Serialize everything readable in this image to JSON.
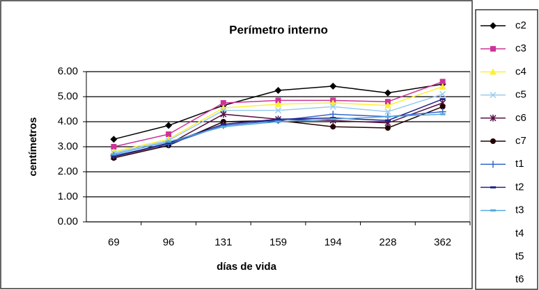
{
  "chart_data": {
    "type": "line",
    "title": "Perímetro interno",
    "x_label": "días de vida",
    "y_label": "centímetros",
    "categories": [
      "69",
      "96",
      "131",
      "159",
      "194",
      "228",
      "362"
    ],
    "ylim": [
      0,
      6
    ],
    "yticks": [
      {
        "value": 0,
        "label": "0.00"
      },
      {
        "value": 1,
        "label": "1.00"
      },
      {
        "value": 2,
        "label": "2.00"
      },
      {
        "value": 3,
        "label": "3.00"
      },
      {
        "value": 4,
        "label": "4.00"
      },
      {
        "value": 5,
        "label": "5.00"
      },
      {
        "value": 6,
        "label": "6.00"
      }
    ],
    "grid": true,
    "legend": "right",
    "series": [
      {
        "name": "c2",
        "color": "#000000",
        "marker": "diamond",
        "values": [
          3.3,
          3.85,
          4.65,
          5.25,
          5.42,
          5.15,
          5.5
        ]
      },
      {
        "name": "c3",
        "color": "#cc3399",
        "marker": "square",
        "values": [
          3.0,
          3.5,
          4.75,
          4.85,
          4.85,
          4.8,
          5.6
        ]
      },
      {
        "name": "c4",
        "color": "#ffee33",
        "marker": "triangle",
        "values": [
          2.8,
          3.3,
          4.55,
          4.7,
          4.75,
          4.65,
          5.4
        ]
      },
      {
        "name": "c5",
        "color": "#99ccee",
        "marker": "x",
        "values": [
          2.75,
          3.25,
          4.45,
          4.45,
          4.6,
          4.4,
          5.1
        ]
      },
      {
        "name": "c6",
        "color": "#551144",
        "marker": "star",
        "values": [
          2.6,
          3.1,
          4.3,
          4.1,
          4.05,
          3.95,
          4.75
        ]
      },
      {
        "name": "c7",
        "color": "#220000",
        "marker": "circle",
        "values": [
          2.55,
          3.05,
          4.0,
          4.05,
          3.8,
          3.75,
          4.6
        ]
      },
      {
        "name": "t1",
        "color": "#3366cc",
        "marker": "plus",
        "values": [
          2.65,
          3.1,
          3.85,
          4.05,
          4.3,
          4.2,
          4.4
        ]
      },
      {
        "name": "t2",
        "color": "#222288",
        "marker": "dash",
        "values": [
          2.6,
          3.15,
          3.9,
          4.1,
          4.15,
          4.05,
          4.9
        ]
      },
      {
        "name": "t3",
        "color": "#55aadd",
        "marker": "dash",
        "values": [
          2.7,
          3.2,
          3.8,
          4.0,
          4.1,
          4.2,
          4.3
        ]
      },
      {
        "name": "t4",
        "color": "#ffffff",
        "marker": "none",
        "values": [
          null,
          null,
          null,
          null,
          null,
          null,
          null
        ]
      },
      {
        "name": "t5",
        "color": "#ffffff",
        "marker": "none",
        "values": [
          null,
          null,
          null,
          null,
          null,
          null,
          null
        ]
      },
      {
        "name": "t6",
        "color": "#ffffff",
        "marker": "none",
        "values": [
          null,
          null,
          null,
          null,
          null,
          null,
          null
        ]
      }
    ]
  }
}
